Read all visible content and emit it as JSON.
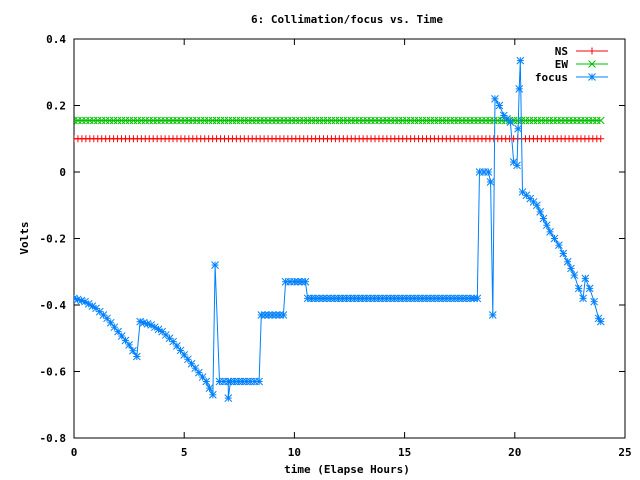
{
  "chart_data": {
    "type": "line",
    "title": "6: Collimation/focus vs. Time",
    "xlabel": "time (Elapse Hours)",
    "ylabel": "Volts",
    "xlim": [
      0,
      25
    ],
    "ylim": [
      -0.8,
      0.4
    ],
    "x_ticks": [
      0,
      5,
      10,
      15,
      20,
      25
    ],
    "y_ticks": [
      -0.8,
      -0.6,
      -0.4,
      -0.2,
      0,
      0.2,
      0.4
    ],
    "x_tick_labels": [
      "0",
      "5",
      "10",
      "15",
      "20",
      "25"
    ],
    "y_tick_labels": [
      "-0.8",
      "-0.6",
      "-0.4",
      "-0.2",
      "0",
      "0.2",
      "0.4"
    ],
    "grid": false,
    "legend_position": "top-right",
    "series": [
      {
        "name": "NS",
        "color": "#ff0000",
        "marker": "plus",
        "segments": [
          [
            [
              0,
              0.1
            ],
            [
              23.9,
              0.1
            ]
          ]
        ]
      },
      {
        "name": "EW",
        "color": "#00c000",
        "marker": "cross",
        "segments": [
          [
            [
              0,
              0.155
            ],
            [
              23.9,
              0.155
            ]
          ]
        ]
      },
      {
        "name": "focus",
        "color": "#0080ff",
        "marker": "star",
        "segments": [
          [
            [
              0,
              -0.38
            ],
            [
              0.5,
              -0.39
            ],
            [
              1.0,
              -0.41
            ],
            [
              1.5,
              -0.44
            ],
            [
              2.0,
              -0.48
            ],
            [
              2.5,
              -0.52
            ],
            [
              2.85,
              -0.555
            ],
            [
              3.0,
              -0.45
            ],
            [
              3.5,
              -0.46
            ],
            [
              4.0,
              -0.48
            ],
            [
              4.5,
              -0.51
            ],
            [
              5.0,
              -0.55
            ],
            [
              5.5,
              -0.59
            ],
            [
              6.0,
              -0.63
            ],
            [
              6.3,
              -0.67
            ],
            [
              6.4,
              -0.28
            ],
            [
              6.6,
              -0.63
            ],
            [
              7.0,
              -0.63
            ],
            [
              7.0,
              -0.68
            ],
            [
              7.1,
              -0.63
            ],
            [
              8.0,
              -0.63
            ],
            [
              8.4,
              -0.63
            ],
            [
              8.5,
              -0.43
            ],
            [
              9.0,
              -0.43
            ],
            [
              9.5,
              -0.43
            ],
            [
              9.6,
              -0.33
            ],
            [
              10.0,
              -0.33
            ],
            [
              10.5,
              -0.33
            ],
            [
              10.6,
              -0.38
            ],
            [
              12.0,
              -0.38
            ],
            [
              14.0,
              -0.38
            ],
            [
              16.0,
              -0.38
            ],
            [
              18.0,
              -0.38
            ],
            [
              18.3,
              -0.38
            ],
            [
              18.4,
              0.0
            ],
            [
              18.8,
              0.0
            ],
            [
              18.9,
              -0.03
            ],
            [
              19.0,
              -0.43
            ],
            [
              19.1,
              0.22
            ],
            [
              19.3,
              0.2
            ],
            [
              19.5,
              0.17
            ],
            [
              19.8,
              0.15
            ],
            [
              19.95,
              0.03
            ],
            [
              20.1,
              0.02
            ],
            [
              20.15,
              0.13
            ],
            [
              20.2,
              0.25
            ],
            [
              20.25,
              0.335
            ],
            [
              20.35,
              -0.06
            ],
            [
              20.7,
              -0.08
            ],
            [
              21.0,
              -0.1
            ],
            [
              21.3,
              -0.14
            ],
            [
              21.6,
              -0.18
            ],
            [
              22.0,
              -0.22
            ],
            [
              22.4,
              -0.27
            ],
            [
              22.7,
              -0.31
            ],
            [
              22.9,
              -0.35
            ],
            [
              23.1,
              -0.38
            ],
            [
              23.2,
              -0.32
            ],
            [
              23.4,
              -0.35
            ],
            [
              23.6,
              -0.39
            ],
            [
              23.8,
              -0.44
            ],
            [
              23.9,
              -0.45
            ]
          ]
        ]
      }
    ]
  }
}
